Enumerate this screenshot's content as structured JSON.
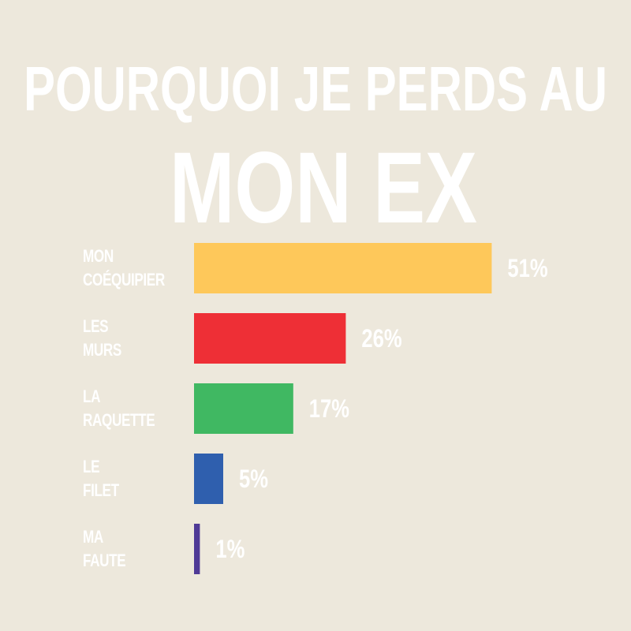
{
  "chart_data": {
    "type": "bar",
    "orientation": "horizontal",
    "title": "POURQUOI JE PERDS AU",
    "subtitle": "MON EX",
    "categories": [
      "MON COÉQUIPIER",
      "LES MURS",
      "LA RAQUETTE",
      "LE FILET",
      "MA FAUTE"
    ],
    "values": [
      51,
      26,
      17,
      5,
      1
    ],
    "value_labels": [
      "51%",
      "26%",
      "17%",
      "5%",
      "1%"
    ],
    "colors": [
      "#fec85a",
      "#ee2f36",
      "#40b862",
      "#2f5fae",
      "#4f3a96"
    ]
  }
}
